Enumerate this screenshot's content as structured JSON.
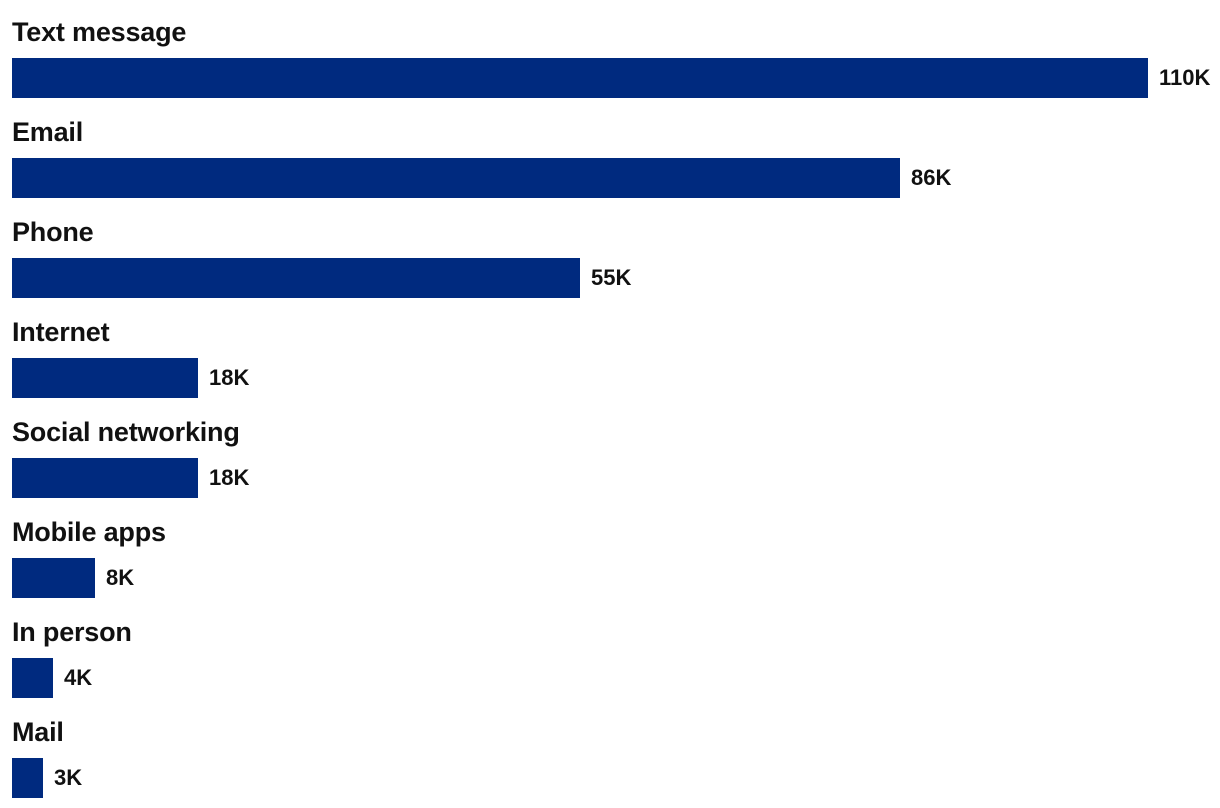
{
  "chart_data": {
    "type": "bar",
    "orientation": "horizontal",
    "title": "",
    "xlabel": "",
    "ylabel": "",
    "categories": [
      "Text message",
      "Email",
      "Phone",
      "Internet",
      "Social networking",
      "Mobile apps",
      "In person",
      "Mail"
    ],
    "values": [
      110,
      86,
      55,
      18,
      18,
      8,
      4,
      3
    ],
    "value_labels": [
      "110K",
      "86K",
      "55K",
      "18K",
      "18K",
      "8K",
      "4K",
      "3K"
    ],
    "unit": "thousand",
    "xlim": [
      0,
      110
    ],
    "grid": false,
    "legend": "none",
    "bar_color": "#002a7f"
  }
}
